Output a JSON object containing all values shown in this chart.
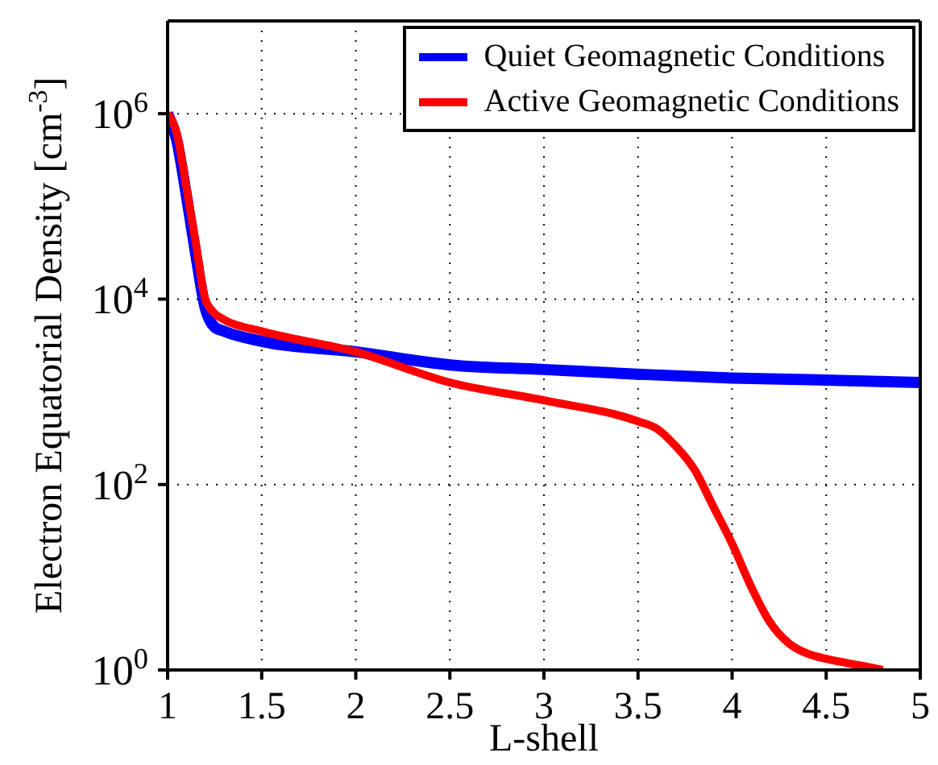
{
  "chart_data": {
    "type": "line",
    "xlabel": "L-shell",
    "ylabel": "Electron Equatorial Density [cm$^{-3}$]",
    "log": "y",
    "grid": true,
    "legend": "top right",
    "line_style": "solid",
    "marker": "none",
    "xlim": [
      1,
      5
    ],
    "xticks": [
      1,
      1.5,
      2,
      2.5,
      3,
      3.5,
      4,
      4.5,
      5
    ],
    "ylim": [
      1,
      10000000
    ],
    "yticks": [
      {
        "value": 1,
        "label": "10$^{0}$"
      },
      {
        "value": 100,
        "label": "10$^{2}$"
      },
      {
        "value": 10000,
        "label": "10$^{4}$"
      },
      {
        "value": 1000000,
        "label": "10$^{6}$"
      }
    ],
    "series": [
      {
        "name": "Quiet Geomagnetic Conditions",
        "color": "#0000ff",
        "x": [
          1,
          1.05,
          1.1,
          1.15,
          1.2,
          1.25,
          1.3,
          1.5,
          2,
          2.5,
          3,
          3.5,
          4,
          4.5,
          5
        ],
        "values": [
          1000000,
          500000,
          130000,
          30000,
          8000,
          5000,
          4500,
          3500,
          2700,
          1950,
          1740,
          1550,
          1410,
          1340,
          1260
        ]
      },
      {
        "name": "Active Geomagnetic Conditions",
        "color": "#ff0000",
        "x": [
          1,
          1.05,
          1.1,
          1.15,
          1.2,
          1.25,
          1.3,
          1.5,
          2,
          2.5,
          3,
          3.5,
          3.6,
          3.7,
          3.8,
          3.9,
          4,
          4.1,
          4.2,
          4.3,
          4.4,
          4.5,
          4.6,
          4.7,
          4.8
        ],
        "values": [
          1000000,
          600000,
          160000,
          40000,
          10000,
          7000,
          6000,
          4500,
          2700,
          1260,
          810,
          480,
          400,
          260,
          145,
          58,
          23,
          8,
          3.3,
          1.95,
          1.5,
          1.32,
          1.2,
          1.1,
          1
        ]
      }
    ]
  }
}
